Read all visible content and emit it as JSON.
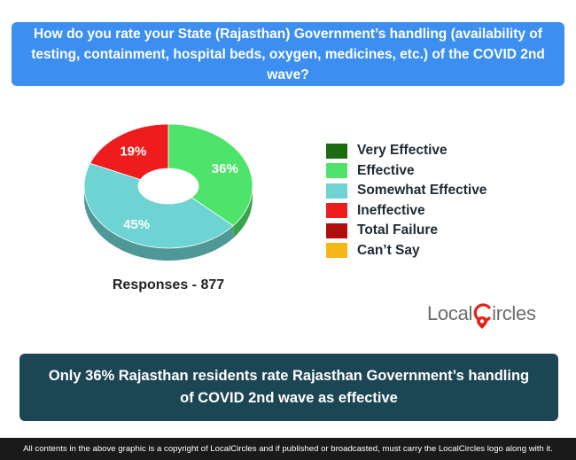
{
  "question": "How do you rate your State (Rajasthan) Government’s handling (availability of testing, containment, hospital beds, oxygen, medicines, etc.) of the COVID 2nd wave?",
  "chart_data": {
    "type": "pie",
    "donut": true,
    "legend_position": "right",
    "categories": [
      "Very Effective",
      "Effective",
      "Somewhat Effective",
      "Ineffective",
      "Total Failure",
      "Can’t Say"
    ],
    "values": [
      0,
      36,
      45,
      19,
      0,
      0
    ],
    "data_labels": [
      "",
      "36%",
      "45%",
      "19%",
      "",
      ""
    ],
    "colors": [
      "#1a6b12",
      "#4ee36a",
      "#6dd3d3",
      "#ee1c1c",
      "#b30e0e",
      "#f5b817"
    ]
  },
  "responses_label": "Responses - 877",
  "logo": {
    "text_before": "Local",
    "text_after": "ircles"
  },
  "conclusion": "Only 36% Rajasthan residents rate Rajasthan Government’s handling of COVID 2nd wave as effective",
  "footer": "All contents in the above graphic is a copyright of LocalCircles and if published or broadcasted, must carry the LocalCircles logo along with it."
}
